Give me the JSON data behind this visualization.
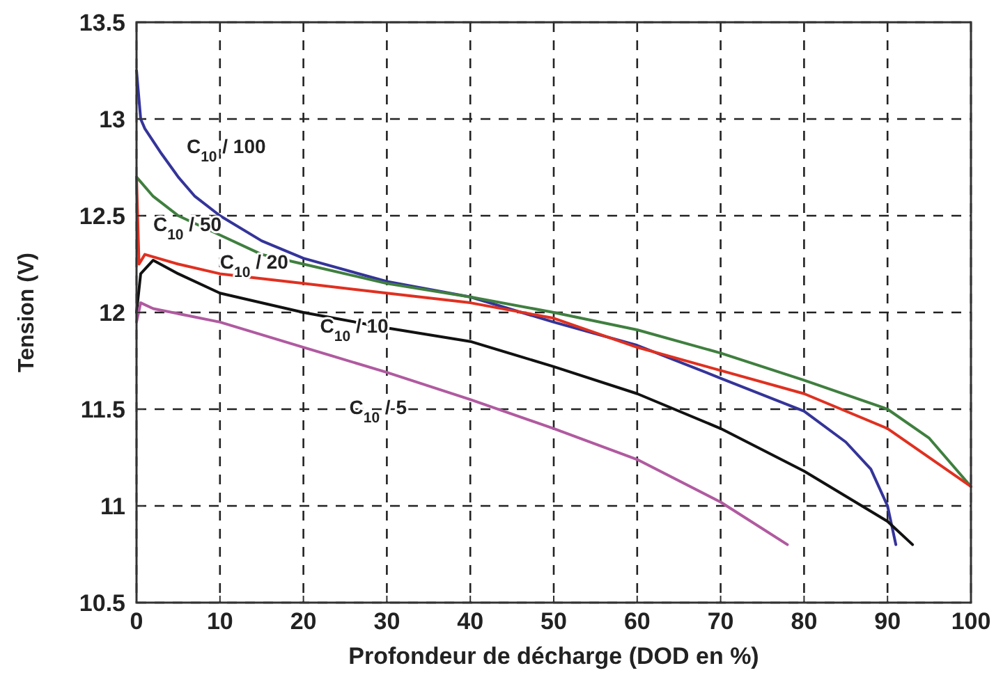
{
  "chart_data": {
    "type": "line",
    "xlabel": "Profondeur de décharge (DOD en %)",
    "ylabel": "Tension (V)",
    "xlim": [
      0,
      100
    ],
    "xticks": [
      0,
      10,
      20,
      30,
      40,
      50,
      60,
      70,
      80,
      90,
      100
    ],
    "ylim": [
      10.5,
      13.5
    ],
    "yticks": [
      10.5,
      11,
      11.5,
      12,
      12.5,
      13,
      13.5
    ],
    "grid": true,
    "line_style": "solid",
    "marker": "none",
    "series": [
      {
        "name": "C$_{10}$ / 100",
        "color": "#34349a",
        "x": [
          0,
          0.5,
          1,
          3,
          5,
          7,
          10,
          15,
          20,
          30,
          40,
          50,
          60,
          70,
          80,
          85,
          88,
          90,
          91
        ],
        "values": [
          13.25,
          13.0,
          12.95,
          12.82,
          12.7,
          12.6,
          12.5,
          12.37,
          12.28,
          12.16,
          12.08,
          11.95,
          11.83,
          11.66,
          11.49,
          11.33,
          11.19,
          11.0,
          10.8
        ]
      },
      {
        "name": "C$_{10}$ / 50",
        "color": "#3f7f3f",
        "x": [
          0,
          2,
          5,
          10,
          15,
          20,
          30,
          40,
          50,
          60,
          70,
          80,
          90,
          95,
          100
        ],
        "values": [
          12.7,
          12.6,
          12.5,
          12.4,
          12.3,
          12.25,
          12.15,
          12.08,
          12.0,
          11.91,
          11.79,
          11.65,
          11.5,
          11.35,
          11.1
        ]
      },
      {
        "name": "C$_{10}$ / 20",
        "color": "#e03020",
        "x": [
          0,
          0.3,
          1,
          5,
          10,
          20,
          30,
          40,
          50,
          60,
          70,
          80,
          90,
          100
        ],
        "values": [
          12.7,
          12.25,
          12.3,
          12.25,
          12.2,
          12.15,
          12.1,
          12.05,
          11.97,
          11.82,
          11.7,
          11.58,
          11.4,
          11.1
        ]
      },
      {
        "name": "C$_{10}$ / 10",
        "color": "#111111",
        "x": [
          0,
          0.5,
          2,
          5,
          10,
          20,
          30,
          40,
          50,
          60,
          70,
          80,
          90,
          93
        ],
        "values": [
          12.0,
          12.2,
          12.27,
          12.2,
          12.1,
          12.0,
          11.92,
          11.85,
          11.72,
          11.58,
          11.4,
          11.18,
          10.92,
          10.8
        ]
      },
      {
        "name": "C$_{10}$ / 5",
        "color": "#b05aa0",
        "x": [
          0,
          0.5,
          2,
          10,
          20,
          30,
          40,
          50,
          60,
          70,
          78
        ],
        "values": [
          11.95,
          12.05,
          12.02,
          11.95,
          11.82,
          11.69,
          11.55,
          11.4,
          11.24,
          11.02,
          10.8
        ]
      }
    ]
  }
}
